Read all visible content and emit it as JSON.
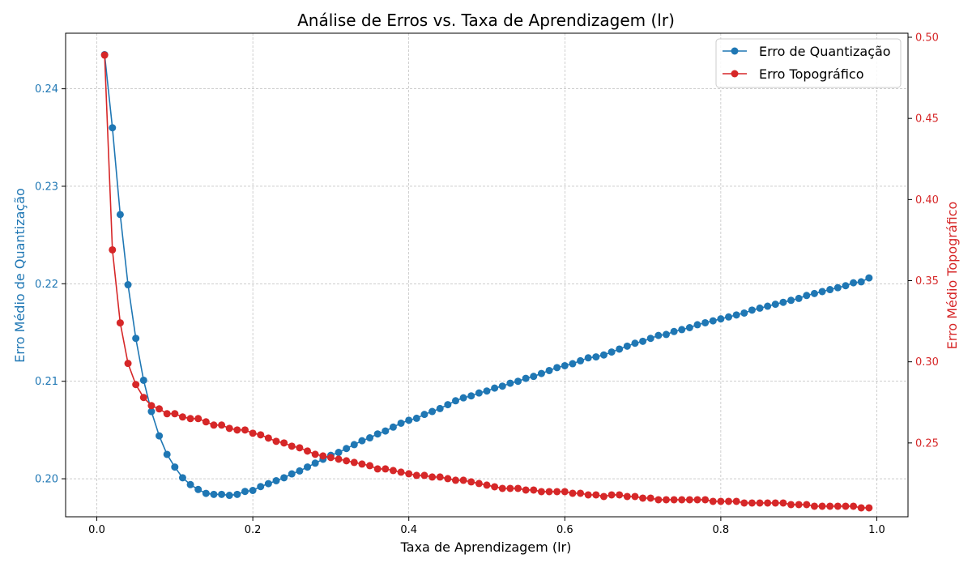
{
  "chart_data": {
    "type": "line",
    "title": "Análise de Erros vs. Taxa de Aprendizagem (lr)",
    "xlabel": "Taxa de Aprendizagem (lr)",
    "ylabel_left": "Erro Médio de Quantização",
    "ylabel_right": "Erro Médio Topográfico",
    "xlim": [
      -0.04,
      1.04
    ],
    "ylim_left": [
      0.1961,
      0.2457
    ],
    "ylim_right": [
      0.2045,
      0.5025
    ],
    "xticks": [
      "0.0",
      "0.2",
      "0.4",
      "0.6",
      "0.8",
      "1.0"
    ],
    "xtick_values": [
      0,
      0.2,
      0.4,
      0.6,
      0.8,
      1.0
    ],
    "yticks_left": [
      "0.20",
      "0.21",
      "0.22",
      "0.23",
      "0.24"
    ],
    "ytick_values_left": [
      0.2,
      0.21,
      0.22,
      0.23,
      0.24
    ],
    "yticks_right": [
      "0.25",
      "0.30",
      "0.35",
      "0.40",
      "0.45",
      "0.50"
    ],
    "ytick_values_right": [
      0.25,
      0.3,
      0.35,
      0.4,
      0.45,
      0.5
    ],
    "grid": true,
    "legend_position": "top-right",
    "x": [
      0.01,
      0.02,
      0.03,
      0.04,
      0.05,
      0.06,
      0.07,
      0.08,
      0.09,
      0.1,
      0.11,
      0.12,
      0.13,
      0.14,
      0.15,
      0.16,
      0.17,
      0.18,
      0.19,
      0.2,
      0.21,
      0.22,
      0.23,
      0.24,
      0.25,
      0.26,
      0.27,
      0.28,
      0.29,
      0.3,
      0.31,
      0.32,
      0.33,
      0.34,
      0.35,
      0.36,
      0.37,
      0.38,
      0.39,
      0.4,
      0.41,
      0.42,
      0.43,
      0.44,
      0.45,
      0.46,
      0.47,
      0.48,
      0.49,
      0.5,
      0.51,
      0.52,
      0.53,
      0.54,
      0.55,
      0.56,
      0.57,
      0.58,
      0.59,
      0.6,
      0.61,
      0.62,
      0.63,
      0.64,
      0.65,
      0.66,
      0.67,
      0.68,
      0.69,
      0.7,
      0.71,
      0.72,
      0.73,
      0.74,
      0.75,
      0.76,
      0.77,
      0.78,
      0.79,
      0.8,
      0.81,
      0.82,
      0.83,
      0.84,
      0.85,
      0.86,
      0.87,
      0.88,
      0.89,
      0.9,
      0.91,
      0.92,
      0.93,
      0.94,
      0.95,
      0.96,
      0.97,
      0.98,
      0.99
    ],
    "series": [
      {
        "name": "Erro de Quantização",
        "axis": "left",
        "color": "#1f77b4",
        "values": [
          0.2435,
          0.236,
          0.2271,
          0.2199,
          0.2144,
          0.2101,
          0.2069,
          0.2044,
          0.2025,
          0.2012,
          0.2001,
          0.1994,
          0.1989,
          0.1985,
          0.1984,
          0.1984,
          0.1983,
          0.1984,
          0.1987,
          0.1988,
          0.1992,
          0.1995,
          0.1998,
          0.2001,
          0.2005,
          0.2008,
          0.2012,
          0.2016,
          0.202,
          0.2024,
          0.2027,
          0.2031,
          0.2035,
          0.2039,
          0.2042,
          0.2046,
          0.2049,
          0.2053,
          0.2057,
          0.206,
          0.2062,
          0.2066,
          0.2069,
          0.2072,
          0.2076,
          0.208,
          0.2083,
          0.2085,
          0.2088,
          0.209,
          0.2093,
          0.2095,
          0.2098,
          0.21,
          0.2103,
          0.2105,
          0.2108,
          0.2111,
          0.2114,
          0.2116,
          0.2118,
          0.2121,
          0.2124,
          0.2125,
          0.2127,
          0.213,
          0.2133,
          0.2136,
          0.2139,
          0.2141,
          0.2144,
          0.2147,
          0.2148,
          0.2151,
          0.2153,
          0.2155,
          0.2158,
          0.216,
          0.2162,
          0.2164,
          0.2166,
          0.2168,
          0.217,
          0.2173,
          0.2175,
          0.2177,
          0.2179,
          0.2181,
          0.2183,
          0.2185,
          0.2188,
          0.219,
          0.2192,
          0.2194,
          0.2196,
          0.2198,
          0.2201,
          0.2202,
          0.2206
        ]
      },
      {
        "name": "Erro Topográfico",
        "axis": "right",
        "color": "#d62728",
        "values": [
          0.489,
          0.369,
          0.324,
          0.299,
          0.286,
          0.278,
          0.273,
          0.271,
          0.268,
          0.268,
          0.266,
          0.265,
          0.265,
          0.263,
          0.261,
          0.261,
          0.259,
          0.258,
          0.258,
          0.256,
          0.255,
          0.253,
          0.251,
          0.25,
          0.248,
          0.247,
          0.245,
          0.243,
          0.242,
          0.241,
          0.24,
          0.239,
          0.238,
          0.237,
          0.236,
          0.234,
          0.234,
          0.233,
          0.232,
          0.231,
          0.23,
          0.23,
          0.229,
          0.229,
          0.228,
          0.227,
          0.227,
          0.226,
          0.225,
          0.224,
          0.223,
          0.222,
          0.222,
          0.222,
          0.221,
          0.221,
          0.22,
          0.22,
          0.22,
          0.22,
          0.219,
          0.219,
          0.218,
          0.218,
          0.217,
          0.218,
          0.218,
          0.217,
          0.217,
          0.216,
          0.216,
          0.215,
          0.215,
          0.215,
          0.215,
          0.215,
          0.215,
          0.215,
          0.214,
          0.214,
          0.214,
          0.214,
          0.213,
          0.213,
          0.213,
          0.213,
          0.213,
          0.213,
          0.212,
          0.212,
          0.212,
          0.211,
          0.211,
          0.211,
          0.211,
          0.211,
          0.211,
          0.21,
          0.21
        ]
      }
    ]
  }
}
